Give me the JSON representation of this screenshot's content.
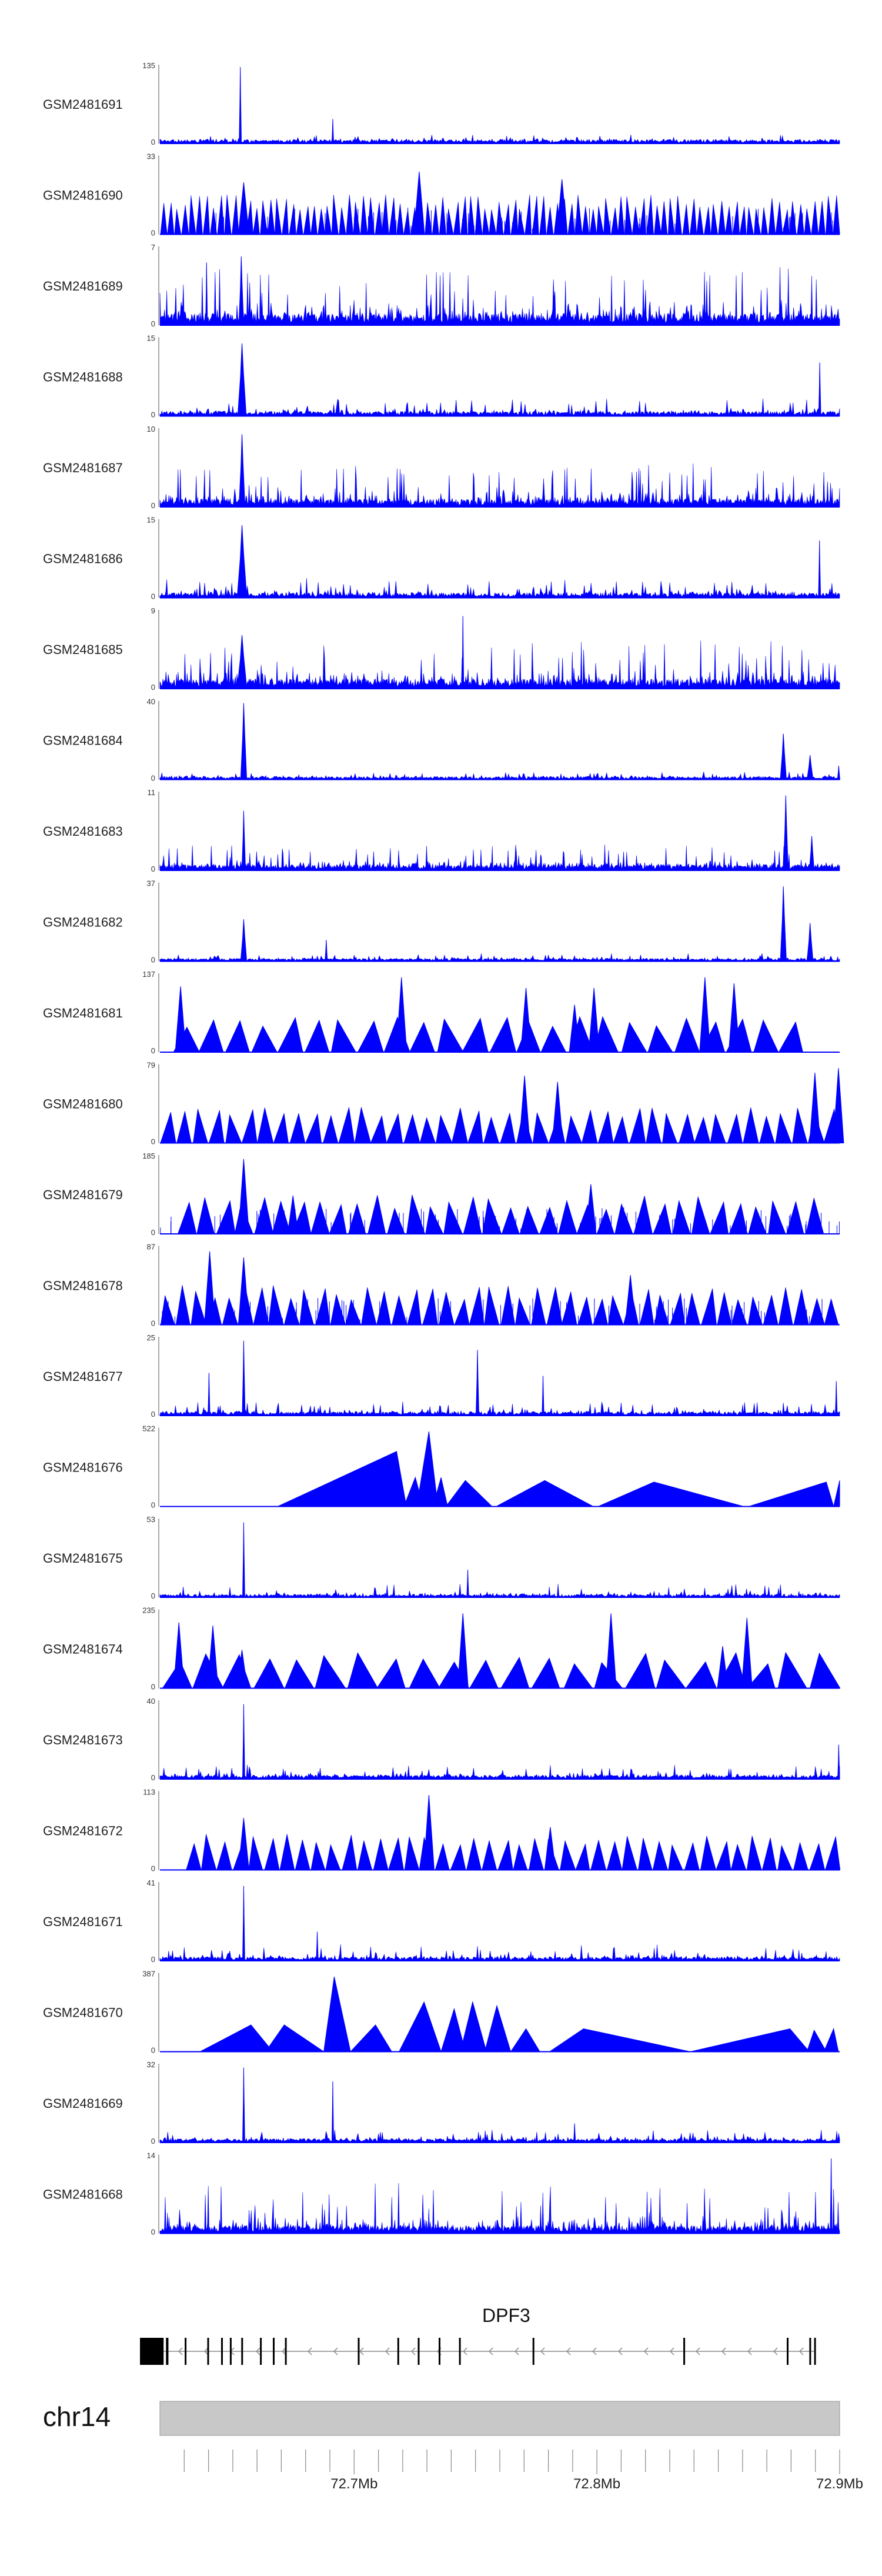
{
  "chart_data": {
    "type": "area",
    "title": "",
    "chromosome": "chr14",
    "gene": "DPF3",
    "strand": "-",
    "xlim_mb": [
      72.62,
      72.9
    ],
    "x_ticks": [
      "72.7Mb",
      "72.8Mb",
      "72.9Mb"
    ],
    "x_tick_values_mb": [
      72.7,
      72.8,
      72.9
    ],
    "color": "#0000ff",
    "tracks": [
      {
        "name": "GSM2481691",
        "ymax": "135",
        "ymax_value": 135,
        "style": "spiky",
        "baseline": 0.04,
        "noise": 0.05,
        "peaks": [
          {
            "x": 72.6531,
            "h": 1.0,
            "w": 0.0009
          },
          {
            "x": 72.6912,
            "h": 0.32,
            "w": 0.0007
          }
        ]
      },
      {
        "name": "GSM2481690",
        "ymax": "33",
        "ymax_value": 33,
        "style": "triangles",
        "baseline": 0.05,
        "noise": 0.18,
        "tri_count": 95,
        "peak_spikes": [
          {
            "x": 72.7268,
            "h": 0.82
          },
          {
            "x": 72.7856,
            "h": 0.72
          },
          {
            "x": 72.6545,
            "h": 0.68
          }
        ]
      },
      {
        "name": "GSM2481689",
        "ymax": "7",
        "ymax_value": 7,
        "style": "dense",
        "baseline": 0.12,
        "noise": 0.45,
        "peaks": [
          {
            "x": 72.6535,
            "h": 0.9,
            "w": 0.002
          },
          {
            "x": 72.6392,
            "h": 0.82,
            "w": 0.0008
          }
        ]
      },
      {
        "name": "GSM2481688",
        "ymax": "15",
        "ymax_value": 15,
        "style": "spiky",
        "baseline": 0.05,
        "noise": 0.12,
        "peaks": [
          {
            "x": 72.6538,
            "h": 0.95,
            "w": 0.0035
          },
          {
            "x": 72.8918,
            "h": 0.7,
            "w": 0.0009
          }
        ]
      },
      {
        "name": "GSM2481687",
        "ymax": "10",
        "ymax_value": 10,
        "style": "dense",
        "baseline": 0.08,
        "noise": 0.35,
        "peaks": [
          {
            "x": 72.6538,
            "h": 0.95,
            "w": 0.0025
          }
        ]
      },
      {
        "name": "GSM2481686",
        "ymax": "15",
        "ymax_value": 15,
        "style": "spiky",
        "baseline": 0.05,
        "noise": 0.14,
        "peaks": [
          {
            "x": 72.6538,
            "h": 0.95,
            "w": 0.004
          },
          {
            "x": 72.8917,
            "h": 0.75,
            "w": 0.0009
          }
        ]
      },
      {
        "name": "GSM2481685",
        "ymax": "9",
        "ymax_value": 9,
        "style": "dense",
        "baseline": 0.1,
        "noise": 0.38,
        "peaks": [
          {
            "x": 72.6538,
            "h": 0.7,
            "w": 0.004
          },
          {
            "x": 72.7448,
            "h": 0.95,
            "w": 0.0006
          }
        ]
      },
      {
        "name": "GSM2481684",
        "ymax": "40",
        "ymax_value": 40,
        "style": "spiky",
        "baseline": 0.03,
        "noise": 0.05,
        "peaks": [
          {
            "x": 72.6545,
            "h": 1.0,
            "w": 0.0025
          },
          {
            "x": 72.8768,
            "h": 0.6,
            "w": 0.0025
          },
          {
            "x": 72.8878,
            "h": 0.32,
            "w": 0.0025
          },
          {
            "x": 72.8996,
            "h": 0.18,
            "w": 0.001
          }
        ]
      },
      {
        "name": "GSM2481683",
        "ymax": "11",
        "ymax_value": 11,
        "style": "dense",
        "baseline": 0.06,
        "noise": 0.2,
        "peaks": [
          {
            "x": 72.6545,
            "h": 0.78,
            "w": 0.0015
          },
          {
            "x": 72.8778,
            "h": 0.98,
            "w": 0.002
          },
          {
            "x": 72.8885,
            "h": 0.45,
            "w": 0.002
          }
        ]
      },
      {
        "name": "GSM2481682",
        "ymax": "37",
        "ymax_value": 37,
        "style": "spiky",
        "baseline": 0.03,
        "noise": 0.05,
        "peaks": [
          {
            "x": 72.6545,
            "h": 0.55,
            "w": 0.0025
          },
          {
            "x": 72.6885,
            "h": 0.28,
            "w": 0.001
          },
          {
            "x": 72.8768,
            "h": 0.98,
            "w": 0.0025
          },
          {
            "x": 72.8878,
            "h": 0.5,
            "w": 0.0025
          }
        ]
      },
      {
        "name": "GSM2481681",
        "ymax": "137",
        "ymax_value": 137,
        "style": "triangles",
        "baseline": 0.0,
        "noise": 0.0,
        "tri_count": 24,
        "x_start": 72.625,
        "x_end": 72.8855,
        "peak_spikes": [
          {
            "x": 72.7195,
            "h": 0.98
          },
          {
            "x": 72.8445,
            "h": 0.98
          },
          {
            "x": 72.8565,
            "h": 0.9
          },
          {
            "x": 72.6285,
            "h": 0.86
          },
          {
            "x": 72.7708,
            "h": 0.84
          },
          {
            "x": 72.7988,
            "h": 0.84
          },
          {
            "x": 72.7908,
            "h": 0.62
          }
        ]
      },
      {
        "name": "GSM2481680",
        "ymax": "79",
        "ymax_value": 79,
        "style": "triangles",
        "baseline": 0.0,
        "noise": 0.0,
        "tri_count": 42,
        "peak_spikes": [
          {
            "x": 72.8995,
            "h": 0.98
          },
          {
            "x": 72.8898,
            "h": 0.92
          },
          {
            "x": 72.7702,
            "h": 0.88
          },
          {
            "x": 72.7838,
            "h": 0.8
          }
        ]
      },
      {
        "name": "GSM2481679",
        "ymax": "185",
        "ymax_value": 185,
        "style": "triangles",
        "baseline": 0.0,
        "noise": 0.02,
        "tri_count": 34,
        "x_start": 72.627,
        "x_end": 72.8935,
        "peak_spikes": [
          {
            "x": 72.6545,
            "h": 0.98
          },
          {
            "x": 72.7975,
            "h": 0.65
          },
          {
            "x": 72.6748,
            "h": 0.5
          }
        ]
      },
      {
        "name": "GSM2481678",
        "ymax": "87",
        "ymax_value": 87,
        "style": "triangles",
        "baseline": 0.0,
        "noise": 0.02,
        "tri_count": 44,
        "peak_spikes": [
          {
            "x": 72.6405,
            "h": 0.96
          },
          {
            "x": 72.6545,
            "h": 0.88
          },
          {
            "x": 72.8138,
            "h": 0.65
          }
        ]
      },
      {
        "name": "GSM2481677",
        "ymax": "25",
        "ymax_value": 25,
        "style": "spiky",
        "baseline": 0.04,
        "noise": 0.1,
        "peaks": [
          {
            "x": 72.6545,
            "h": 0.98,
            "w": 0.0012
          },
          {
            "x": 72.7508,
            "h": 0.86,
            "w": 0.0012
          },
          {
            "x": 72.7778,
            "h": 0.52,
            "w": 0.0008
          },
          {
            "x": 72.6402,
            "h": 0.56,
            "w": 0.0008
          },
          {
            "x": 72.8986,
            "h": 0.45,
            "w": 0.0008
          }
        ]
      },
      {
        "name": "GSM2481676",
        "ymax": "522",
        "ymax_value": 522,
        "style": "broad",
        "segments": [
          {
            "x0": 72.6685,
            "xp": 72.7175,
            "x1": 72.7215,
            "h": 0.72
          },
          {
            "x0": 72.7205,
            "xp": 72.7252,
            "x1": 72.7285,
            "h": 0.38
          },
          {
            "x0": 72.7258,
            "xp": 72.7308,
            "x1": 72.7345,
            "h": 0.98
          },
          {
            "x0": 72.7325,
            "xp": 72.7358,
            "x1": 72.7385,
            "h": 0.38
          },
          {
            "x0": 72.7378,
            "xp": 72.7458,
            "x1": 72.7568,
            "h": 0.34
          },
          {
            "x0": 72.7585,
            "xp": 72.7785,
            "x1": 72.7985,
            "h": 0.34
          },
          {
            "x0": 72.8005,
            "xp": 72.8235,
            "x1": 72.8605,
            "h": 0.32
          },
          {
            "x0": 72.8625,
            "xp": 72.8945,
            "x1": 72.8975,
            "h": 0.32
          },
          {
            "x0": 72.8975,
            "xp": 72.9,
            "x1": 72.9,
            "h": 0.34
          }
        ]
      },
      {
        "name": "GSM2481675",
        "ymax": "53",
        "ymax_value": 53,
        "style": "spiky",
        "baseline": 0.03,
        "noise": 0.1,
        "peaks": [
          {
            "x": 72.6545,
            "h": 0.98,
            "w": 0.0009
          },
          {
            "x": 72.7468,
            "h": 0.36,
            "w": 0.0008
          }
        ]
      },
      {
        "name": "GSM2481674",
        "ymax": "235",
        "ymax_value": 235,
        "style": "triangles",
        "baseline": 0.0,
        "noise": 0.0,
        "tri_count": 22,
        "peak_spikes": [
          {
            "x": 72.7448,
            "h": 0.98
          },
          {
            "x": 72.8058,
            "h": 0.98
          },
          {
            "x": 72.8618,
            "h": 0.92
          },
          {
            "x": 72.6278,
            "h": 0.86
          },
          {
            "x": 72.6418,
            "h": 0.82
          },
          {
            "x": 72.8518,
            "h": 0.55
          },
          {
            "x": 72.6538,
            "h": 0.5
          }
        ]
      },
      {
        "name": "GSM2481673",
        "ymax": "40",
        "ymax_value": 40,
        "style": "spiky",
        "baseline": 0.04,
        "noise": 0.1,
        "peaks": [
          {
            "x": 72.6545,
            "h": 0.98,
            "w": 0.0009
          },
          {
            "x": 72.8996,
            "h": 0.45,
            "w": 0.0008
          }
        ]
      },
      {
        "name": "GSM2481672",
        "ymax": "113",
        "ymax_value": 113,
        "style": "triangles",
        "baseline": 0.0,
        "noise": 0.0,
        "tri_count": 42,
        "x_start": 72.6305,
        "x_end": 72.9,
        "peak_spikes": [
          {
            "x": 72.7308,
            "h": 0.98
          },
          {
            "x": 72.6545,
            "h": 0.68
          },
          {
            "x": 72.7808,
            "h": 0.56
          }
        ]
      },
      {
        "name": "GSM2481671",
        "ymax": "41",
        "ymax_value": 41,
        "style": "spiky",
        "baseline": 0.04,
        "noise": 0.12,
        "peaks": [
          {
            "x": 72.6545,
            "h": 0.98,
            "w": 0.0009
          },
          {
            "x": 72.6848,
            "h": 0.38,
            "w": 0.0008
          }
        ]
      },
      {
        "name": "GSM2481670",
        "ymax": "387",
        "ymax_value": 387,
        "style": "broad",
        "segments": [
          {
            "x0": 72.6365,
            "xp": 72.6575,
            "x1": 72.6665,
            "h": 0.35
          },
          {
            "x0": 72.6635,
            "xp": 72.6712,
            "x1": 72.6875,
            "h": 0.35
          },
          {
            "x0": 72.6875,
            "xp": 72.6918,
            "x1": 72.6985,
            "h": 0.98
          },
          {
            "x0": 72.6985,
            "xp": 72.7088,
            "x1": 72.7155,
            "h": 0.35
          },
          {
            "x0": 72.7185,
            "xp": 72.7288,
            "x1": 72.7358,
            "h": 0.65
          },
          {
            "x0": 72.7358,
            "xp": 72.7412,
            "x1": 72.7458,
            "h": 0.56
          },
          {
            "x0": 72.7438,
            "xp": 72.7488,
            "x1": 72.7545,
            "h": 0.65
          },
          {
            "x0": 72.7538,
            "xp": 72.7588,
            "x1": 72.7645,
            "h": 0.6
          },
          {
            "x0": 72.7645,
            "xp": 72.7708,
            "x1": 72.7765,
            "h": 0.3
          },
          {
            "x0": 72.7805,
            "xp": 72.7945,
            "x1": 72.8385,
            "h": 0.3
          },
          {
            "x0": 72.8385,
            "xp": 72.8795,
            "x1": 72.8875,
            "h": 0.3
          },
          {
            "x0": 72.8865,
            "xp": 72.8895,
            "x1": 72.8945,
            "h": 0.28
          },
          {
            "x0": 72.8935,
            "xp": 72.8975,
            "x1": 72.8995,
            "h": 0.3
          }
        ]
      },
      {
        "name": "GSM2481669",
        "ymax": "32",
        "ymax_value": 32,
        "style": "spiky",
        "baseline": 0.04,
        "noise": 0.1,
        "peaks": [
          {
            "x": 72.6545,
            "h": 0.98,
            "w": 0.0009
          },
          {
            "x": 72.6912,
            "h": 0.8,
            "w": 0.0007
          },
          {
            "x": 72.7908,
            "h": 0.25,
            "w": 0.0008
          }
        ]
      },
      {
        "name": "GSM2481668",
        "ymax": "14",
        "ymax_value": 14,
        "style": "dense",
        "baseline": 0.08,
        "noise": 0.4,
        "peaks": [
          {
            "x": 72.8965,
            "h": 0.98,
            "w": 0.0008
          }
        ]
      }
    ],
    "gene_model": {
      "exons_mb": [
        [
          72.6205,
          72.6215
        ],
        [
          72.6225,
          72.6235
        ],
        [
          72.6302,
          72.6306
        ],
        [
          72.6395,
          72.6401
        ],
        [
          72.6452,
          72.6457
        ],
        [
          72.6488,
          72.6492
        ],
        [
          72.6535,
          72.6542
        ],
        [
          72.6612,
          72.6616
        ],
        [
          72.6665,
          72.667
        ],
        [
          72.6715,
          72.672
        ],
        [
          72.7015,
          72.7019
        ],
        [
          72.7178,
          72.7182
        ],
        [
          72.7262,
          72.7266
        ],
        [
          72.7348,
          72.7352
        ],
        [
          72.7432,
          72.7436
        ],
        [
          72.7735,
          72.7739
        ],
        [
          72.8356,
          72.836
        ],
        [
          72.8782,
          72.8786
        ],
        [
          72.8875,
          72.888
        ],
        [
          72.8895,
          72.8899
        ]
      ],
      "utr_block_mb": [
        72.6205,
        72.6305
      ]
    }
  }
}
